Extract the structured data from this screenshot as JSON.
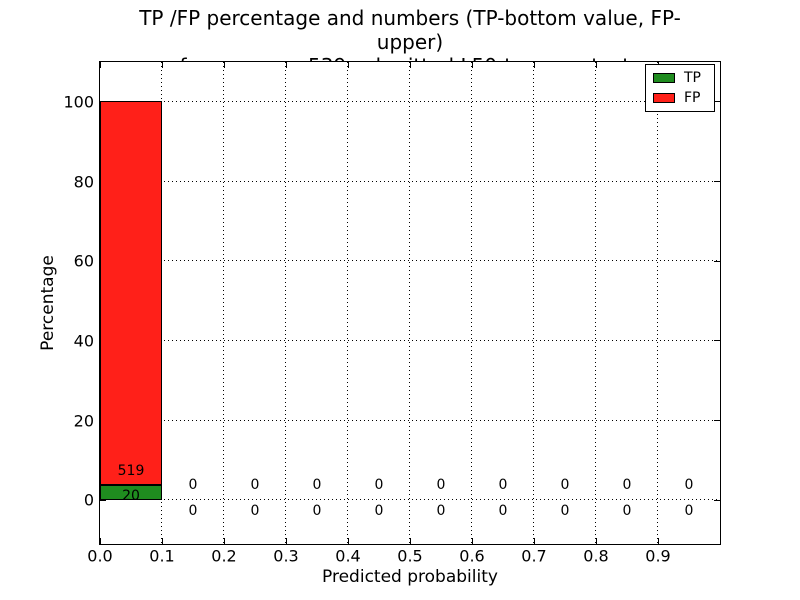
{
  "chart_data": {
    "type": "bar",
    "stacked": true,
    "title_line1": "TP /FP percentage and numbers (TP-bottom value, FP-upper)",
    "title_line2": "from among 539 submitted L50-type contacts",
    "xlabel": "Predicted probability",
    "ylabel": "Percentage",
    "total_submitted": 539,
    "xlim": [
      0.0,
      1.0
    ],
    "ylim": [
      -11,
      110
    ],
    "xtick_labels": [
      "0.0",
      "0.1",
      "0.2",
      "0.3",
      "0.4",
      "0.5",
      "0.6",
      "0.7",
      "0.8",
      "0.9"
    ],
    "ytick_labels": [
      "0",
      "20",
      "40",
      "60",
      "80",
      "100"
    ],
    "grid": {
      "show": true,
      "style": "dotted",
      "color": "#000000"
    },
    "bin_width": 0.1,
    "bin_centers": [
      0.05,
      0.15,
      0.25,
      0.35,
      0.45,
      0.55,
      0.65,
      0.75,
      0.85,
      0.95
    ],
    "series": [
      {
        "name": "TP",
        "color": "#1f8c1f",
        "counts": [
          20,
          0,
          0,
          0,
          0,
          0,
          0,
          0,
          0,
          0
        ],
        "percentages": [
          3.71,
          0,
          0,
          0,
          0,
          0,
          0,
          0,
          0,
          0
        ]
      },
      {
        "name": "FP",
        "color": "#ff2019",
        "counts": [
          519,
          0,
          0,
          0,
          0,
          0,
          0,
          0,
          0,
          0
        ],
        "percentages": [
          96.29,
          0,
          0,
          0,
          0,
          0,
          0,
          0,
          0,
          0
        ]
      }
    ],
    "legend": {
      "position": "upper-right",
      "entries": [
        {
          "label": "TP",
          "color": "#1f8c1f"
        },
        {
          "label": "FP",
          "color": "#ff2019"
        }
      ]
    },
    "annotation_note": "TP-bottom value, FP-upper"
  },
  "colors": {
    "background": "#ffffff",
    "axes": "#000000",
    "text": "#000000"
  }
}
